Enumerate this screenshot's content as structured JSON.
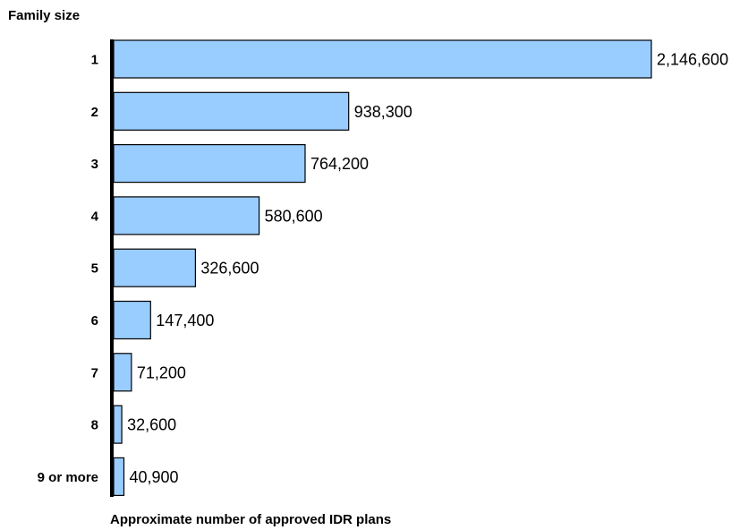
{
  "chart_data": {
    "type": "bar",
    "orientation": "horizontal",
    "ylabel": "Family size",
    "xlabel": "Approximate number of approved IDR plans",
    "categories": [
      "1",
      "2",
      "3",
      "4",
      "5",
      "6",
      "7",
      "8",
      "9 or more"
    ],
    "values": [
      2146600,
      938300,
      764200,
      580600,
      326600,
      147400,
      71200,
      32600,
      40900
    ],
    "value_labels": [
      "2,146,600",
      "938,300",
      "764,200",
      "580,600",
      "326,600",
      "147,400",
      "71,200",
      "32,600",
      "40,900"
    ],
    "xlim": [
      0,
      2146600
    ],
    "grid": false,
    "legend": "none",
    "colors": {
      "bar_fill": "#99ccff",
      "bar_stroke": "#000000",
      "axis": "#000000"
    }
  }
}
